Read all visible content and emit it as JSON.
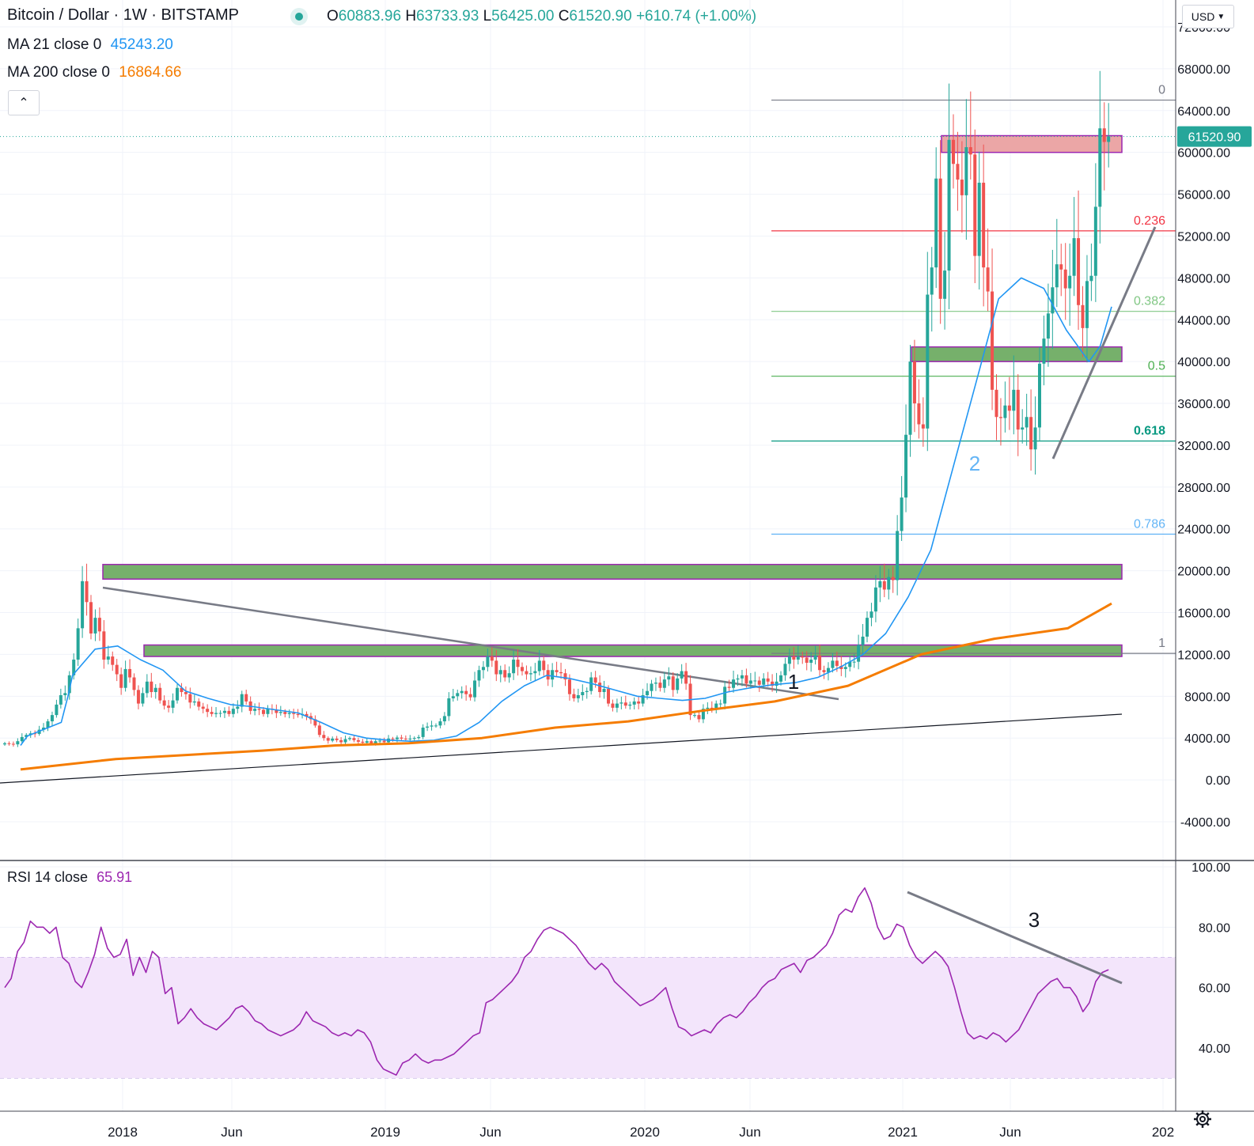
{
  "header": {
    "title": "Bitcoin / Dollar · 1W · BITSTAMP",
    "ohlc": {
      "o_label": "O",
      "o": "60883.96",
      "h_label": "H",
      "h": "63733.93",
      "l_label": "L",
      "l": "56425.00",
      "c_label": "C",
      "c": "61520.90",
      "change": "+610.74 (+1.00%)"
    },
    "ma21": {
      "label": "MA 21 close 0",
      "value": "45243.20"
    },
    "ma200": {
      "label": "MA 200 close 0",
      "value": "16864.66"
    },
    "rsi": {
      "label": "RSI 14 close",
      "value": "65.91"
    },
    "currency": "USD"
  },
  "colors": {
    "up": "#26a69a",
    "down": "#ef5350",
    "ma21": "#2196f3",
    "ma200": "#f57c00",
    "rsi": "#9c27b0",
    "rsi_band": "#f3e5fb",
    "price_badge": "#26a69a"
  },
  "icons": {
    "collapse": "chevron-up-icon",
    "currency_dropdown": "chevron-down-icon",
    "settings": "gear-icon"
  },
  "chart_data": [
    {
      "type": "candlestick",
      "title": "Bitcoin / Dollar · 1W · BITSTAMP",
      "y_ticks": [
        "72000.00",
        "68000.00",
        "64000.00",
        "60000.00",
        "56000.00",
        "52000.00",
        "48000.00",
        "44000.00",
        "40000.00",
        "36000.00",
        "32000.00",
        "28000.00",
        "24000.00",
        "20000.00",
        "16000.00",
        "12000.00",
        "8000.00",
        "4000.00",
        "0.00",
        "-4000.00"
      ],
      "x_ticks": [
        "2018",
        "Jun",
        "2019",
        "Jun",
        "2020",
        "Jun",
        "2021",
        "Jun",
        "202"
      ],
      "ylim": [
        -4500,
        73500
      ],
      "last_price": "61520.90",
      "x_start": "2017-07-10",
      "x_step_days": 7,
      "closes": [
        3500,
        3450,
        3400,
        3700,
        4100,
        4300,
        4450,
        4400,
        4800,
        5000,
        5600,
        6200,
        7200,
        8100,
        8300,
        10000,
        11500,
        14500,
        19000,
        17000,
        14000,
        15500,
        14200,
        11500,
        11800,
        11000,
        10100,
        8800,
        10600,
        9800,
        8600,
        7300,
        8300,
        9400,
        8400,
        8800,
        7600,
        7100,
        6900,
        7600,
        8800,
        8400,
        8200,
        7400,
        7500,
        7000,
        6800,
        6500,
        6300,
        6400,
        6400,
        6600,
        6300,
        6800,
        7000,
        8200,
        7500,
        6600,
        6800,
        6700,
        6300,
        6800,
        6700,
        6400,
        6500,
        6300,
        6400,
        6300,
        6200,
        6300,
        6100,
        5800,
        5200,
        4300,
        4000,
        3750,
        3950,
        3800,
        3600,
        3900,
        4000,
        3800,
        3650,
        3550,
        3700,
        3500,
        3700,
        3750,
        3600,
        3950,
        3900,
        4050,
        3950,
        3900,
        3950,
        4000,
        4100,
        5000,
        5100,
        5200,
        5200,
        5600,
        6100,
        7800,
        8000,
        8300,
        8500,
        8200,
        7900,
        9500,
        10500,
        10800,
        11800,
        11400,
        10100,
        10500,
        9800,
        10200,
        11500,
        10800,
        10400,
        10100,
        10200,
        10400,
        11400,
        10500,
        9600,
        10500,
        10300,
        10200,
        9600,
        8200,
        7800,
        8100,
        8400,
        8500,
        9800,
        9300,
        8400,
        8700,
        7300,
        6900,
        7300,
        7400,
        7100,
        7200,
        7500,
        7300,
        8100,
        8500,
        9200,
        9300,
        8800,
        9600,
        9900,
        8600,
        9700,
        10400,
        9200,
        6200,
        6200,
        5800,
        6800,
        6900,
        6700,
        7300,
        7300,
        8900,
        8800,
        9600,
        9700,
        10000,
        9200,
        9500,
        9500,
        9100,
        9700,
        9400,
        9000,
        9400,
        10000,
        11100,
        11800,
        11500,
        11800,
        11700,
        11200,
        11500,
        11900,
        10500,
        10300,
        10700,
        11400,
        10900,
        10600,
        10800,
        11300,
        11300,
        12900,
        13700,
        15500,
        16100,
        18400,
        19000,
        18200,
        19400,
        19100,
        23800,
        27000,
        33000,
        40000,
        36000,
        34000,
        33600,
        46400,
        49000,
        57500,
        46000,
        48700,
        61200,
        58900,
        57400,
        55900,
        60500,
        59800,
        50100,
        57100,
        49000,
        46700,
        37300,
        34700,
        34600,
        35800,
        35300,
        37300,
        33500,
        33700,
        34700,
        31600,
        33700,
        39800,
        42200,
        44600,
        47100,
        49300,
        48800,
        47000,
        48200,
        51800,
        45400,
        43200,
        47700,
        48200,
        54800,
        62300,
        61000,
        61520
      ]
    },
    {
      "type": "line",
      "name": "MA 21 close 0",
      "values": [
        [
          3300,
          1070
        ],
        [
          4200,
          1100
        ],
        [
          5500,
          1250
        ],
        [
          8000,
          1280
        ],
        [
          10000,
          1300
        ],
        [
          12500,
          1400
        ],
        [
          12800,
          1500
        ],
        [
          11500,
          1600
        ],
        [
          10500,
          1700
        ],
        [
          8500,
          1800
        ],
        [
          7800,
          1900
        ],
        [
          7200,
          2000
        ],
        [
          7000,
          2100
        ],
        [
          6700,
          2200
        ],
        [
          6400,
          2300
        ],
        [
          5500,
          2400
        ],
        [
          4500,
          2500
        ],
        [
          4000,
          2600
        ],
        [
          3800,
          2700
        ],
        [
          3700,
          2800
        ],
        [
          3800,
          2900
        ],
        [
          4200,
          3000
        ],
        [
          5500,
          3100
        ],
        [
          7500,
          3200
        ],
        [
          9000,
          3300
        ],
        [
          10000,
          3400
        ],
        [
          9700,
          3500
        ],
        [
          9200,
          3600
        ],
        [
          8600,
          3700
        ],
        [
          8000,
          3800
        ],
        [
          7800,
          3900
        ],
        [
          7600,
          4000
        ],
        [
          7800,
          4100
        ],
        [
          8400,
          4200
        ],
        [
          8800,
          4300
        ],
        [
          9100,
          4400
        ],
        [
          9300,
          4500
        ],
        [
          9800,
          4600
        ],
        [
          10800,
          4700
        ],
        [
          12000,
          4800
        ],
        [
          14000,
          4900
        ],
        [
          17500,
          5000
        ],
        [
          22000,
          5100
        ],
        [
          30000,
          5200
        ],
        [
          38000,
          5300
        ],
        [
          46000,
          5400
        ],
        [
          48000,
          5500
        ],
        [
          47000,
          5600
        ],
        [
          43000,
          5700
        ],
        [
          40000,
          5800
        ],
        [
          41500,
          5850
        ],
        [
          45243,
          5900
        ]
      ]
    },
    {
      "type": "line",
      "name": "MA 200 close 0",
      "values": [
        [
          1000,
          1070
        ],
        [
          2000,
          1200
        ],
        [
          2800,
          1400
        ],
        [
          3300,
          1500
        ],
        [
          3500,
          1600
        ],
        [
          4000,
          1700
        ],
        [
          5000,
          1800
        ],
        [
          5600,
          1900
        ],
        [
          6600,
          2000
        ],
        [
          7500,
          2100
        ],
        [
          9000,
          2200
        ],
        [
          12000,
          2300
        ],
        [
          13500,
          2400
        ],
        [
          14500,
          2500
        ],
        [
          16864,
          2560
        ]
      ]
    },
    {
      "type": "annotations",
      "fibonacci_levels": [
        {
          "label": "0",
          "price": 65000,
          "color": "#787b86"
        },
        {
          "label": "0.236",
          "price": 52500,
          "color": "#f23645"
        },
        {
          "label": "0.382",
          "price": 44800,
          "color": "#81c784"
        },
        {
          "label": "0.5",
          "price": 38600,
          "color": "#4caf50"
        },
        {
          "label": "0.618",
          "price": 32400,
          "color": "#089981"
        },
        {
          "label": "0.786",
          "price": 23500,
          "color": "#64b5f6"
        },
        {
          "label": "1",
          "price": 12100,
          "color": "#787b86"
        }
      ],
      "zones": [
        {
          "from": 19200,
          "to": 20600,
          "type": "support"
        },
        {
          "from": 11800,
          "to": 12900,
          "type": "support"
        },
        {
          "from": 40000,
          "to": 41400,
          "type": "support"
        },
        {
          "from": 60000,
          "to": 61600,
          "type": "resistance"
        }
      ],
      "labels": [
        "1",
        "2",
        "3"
      ]
    },
    {
      "type": "line",
      "name": "RSI 14 close",
      "y_ticks": [
        "100.00",
        "80.00",
        "60.00",
        "40.00"
      ],
      "ylim": [
        28,
        103
      ],
      "band": [
        30,
        70
      ],
      "values": [
        60,
        63,
        72,
        75,
        82,
        80,
        80,
        78,
        80,
        70,
        68,
        62,
        60,
        65,
        71,
        80,
        73,
        70,
        71,
        76,
        64,
        70,
        65,
        72,
        70,
        58,
        60,
        48,
        50,
        53,
        50,
        48,
        47,
        46,
        48,
        50,
        53,
        54,
        52,
        49,
        48,
        46,
        45,
        44,
        45,
        46,
        48,
        52,
        49,
        48,
        47,
        45,
        44,
        45,
        44,
        46,
        45,
        42,
        36,
        33,
        32,
        31,
        35,
        36,
        38,
        36,
        35,
        36,
        36,
        37,
        38,
        40,
        42,
        44,
        45,
        55,
        56,
        58,
        60,
        62,
        65,
        70,
        72,
        76,
        79,
        80,
        79,
        78,
        76,
        74,
        71,
        68,
        66,
        68,
        66,
        62,
        60,
        58,
        56,
        54,
        55,
        56,
        58,
        60,
        53,
        47,
        46,
        44,
        45,
        46,
        45,
        48,
        50,
        51,
        50,
        52,
        55,
        57,
        60,
        62,
        63,
        66,
        67,
        68,
        65,
        69,
        70,
        72,
        74,
        78,
        84,
        86,
        85,
        90,
        93,
        88,
        80,
        76,
        77,
        81,
        80,
        74,
        70,
        68,
        70,
        72,
        70,
        67,
        60,
        52,
        45,
        43,
        44,
        43,
        45,
        44,
        42,
        44,
        46,
        50,
        54,
        58,
        60,
        62,
        63,
        60,
        60,
        57,
        52,
        55,
        62,
        65,
        65.9
      ]
    }
  ]
}
